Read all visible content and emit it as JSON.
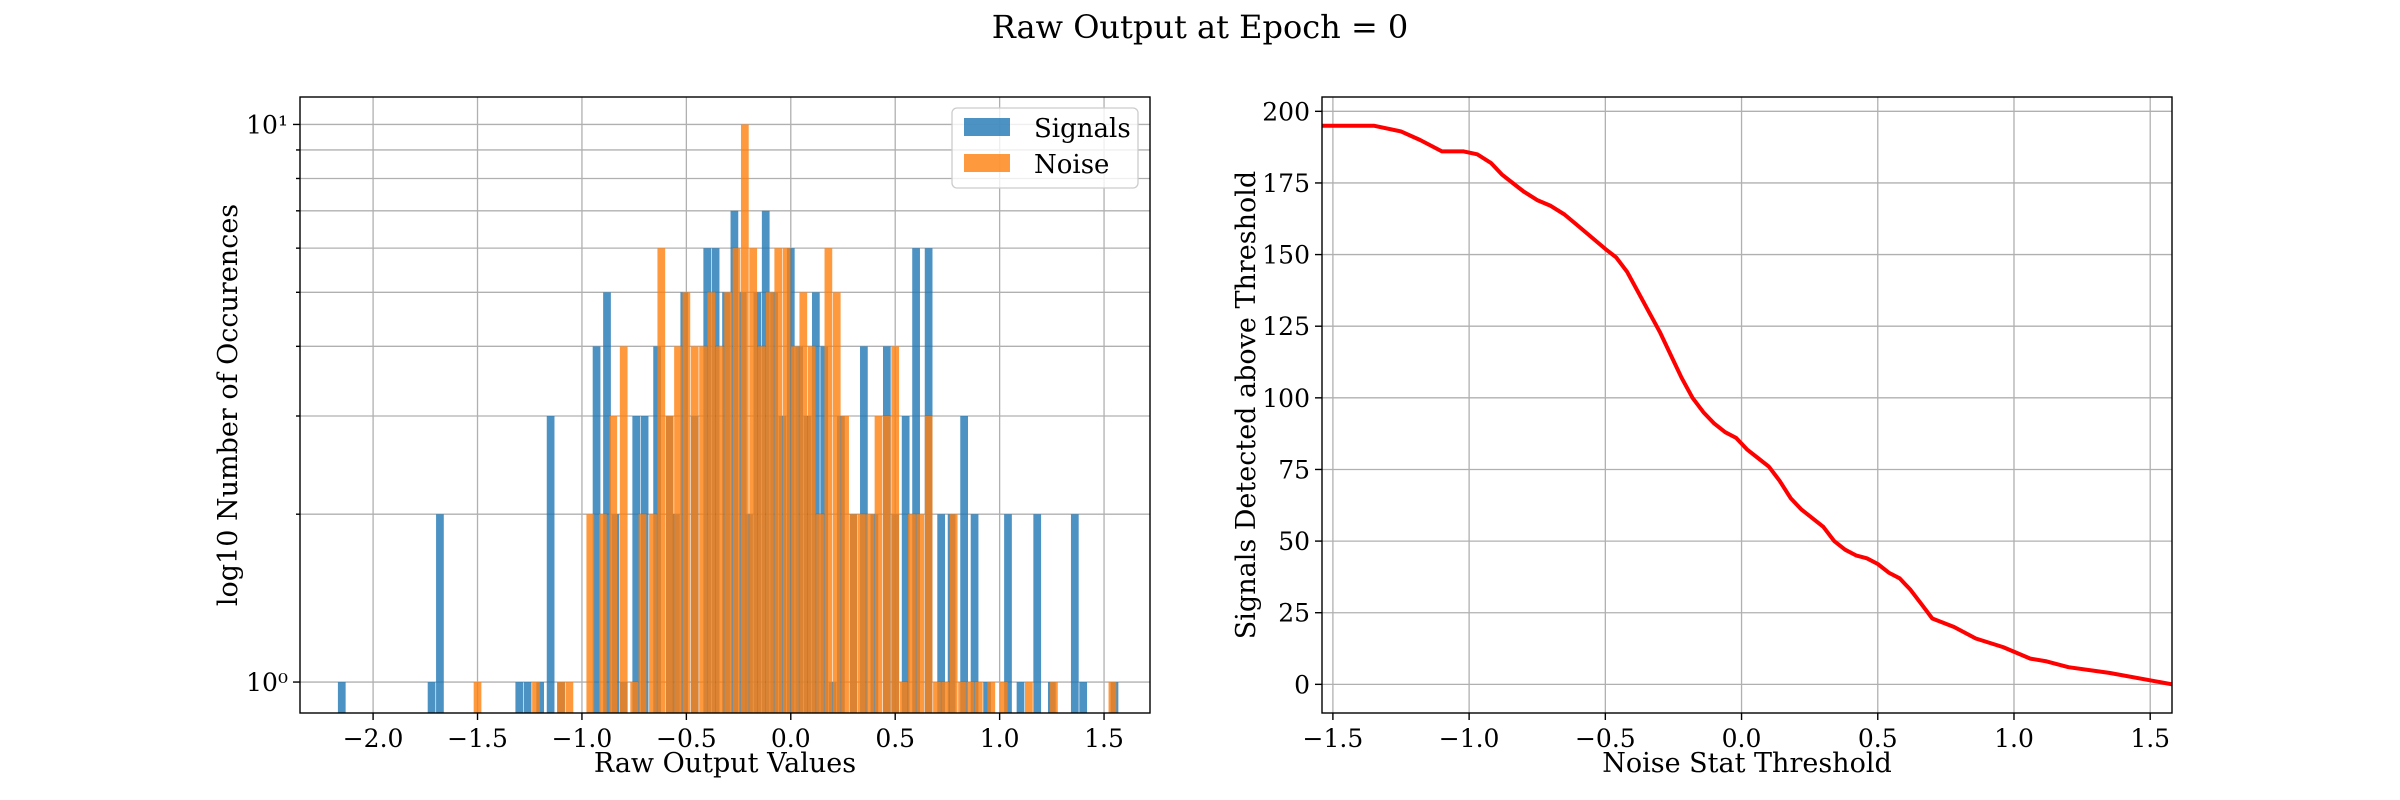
{
  "figure": {
    "suptitle": "Raw Output at Epoch = 0"
  },
  "chart_data": [
    {
      "type": "bar",
      "subtype": "histogram",
      "title": "",
      "xlabel": "Raw Output Values",
      "ylabel": "log10 Number of Occurences",
      "yscale": "log",
      "xlim": [
        -2.35,
        1.72
      ],
      "ylim": [
        0.88,
        11.2
      ],
      "xticks": [
        -2.0,
        -1.5,
        -1.0,
        -0.5,
        0.0,
        0.5,
        1.0,
        1.5
      ],
      "xtick_labels": [
        "−2.0",
        "−1.5",
        "−1.0",
        "−0.5",
        "0.0",
        "0.5",
        "1.0",
        "1.5"
      ],
      "yticks": [
        1,
        10
      ],
      "ytick_labels": [
        "10⁰",
        "10¹"
      ],
      "grid": true,
      "legend_position": "top-right",
      "bin_width": 0.037,
      "series": [
        {
          "name": "Signals",
          "color": "#1f77b4",
          "bins": [
            [
              -2.15,
              1
            ],
            [
              -1.72,
              1
            ],
            [
              -1.68,
              2
            ],
            [
              -1.3,
              1
            ],
            [
              -1.26,
              1
            ],
            [
              -1.2,
              1
            ],
            [
              -1.15,
              3
            ],
            [
              -1.1,
              1
            ],
            [
              -0.93,
              4
            ],
            [
              -0.88,
              5
            ],
            [
              -0.84,
              2
            ],
            [
              -0.8,
              1
            ],
            [
              -0.74,
              3
            ],
            [
              -0.7,
              3
            ],
            [
              -0.64,
              4
            ],
            [
              -0.58,
              3
            ],
            [
              -0.55,
              2
            ],
            [
              -0.51,
              5
            ],
            [
              -0.46,
              3
            ],
            [
              -0.4,
              6
            ],
            [
              -0.36,
              6
            ],
            [
              -0.31,
              5
            ],
            [
              -0.27,
              7
            ],
            [
              -0.23,
              5
            ],
            [
              -0.2,
              2
            ],
            [
              -0.16,
              5
            ],
            [
              -0.12,
              7
            ],
            [
              -0.08,
              5
            ],
            [
              -0.04,
              3
            ],
            [
              0.0,
              6
            ],
            [
              0.04,
              4
            ],
            [
              0.08,
              3
            ],
            [
              0.12,
              5
            ],
            [
              0.16,
              4
            ],
            [
              0.2,
              1
            ],
            [
              0.24,
              3
            ],
            [
              0.3,
              2
            ],
            [
              0.35,
              4
            ],
            [
              0.4,
              2
            ],
            [
              0.46,
              4
            ],
            [
              0.5,
              2
            ],
            [
              0.55,
              3
            ],
            [
              0.6,
              6
            ],
            [
              0.66,
              6
            ],
            [
              0.72,
              2
            ],
            [
              0.77,
              2
            ],
            [
              0.83,
              3
            ],
            [
              0.88,
              2
            ],
            [
              0.94,
              1
            ],
            [
              1.04,
              2
            ],
            [
              1.1,
              1
            ],
            [
              1.18,
              2
            ],
            [
              1.25,
              1
            ],
            [
              1.36,
              2
            ],
            [
              1.4,
              1
            ],
            [
              1.55,
              1
            ]
          ]
        },
        {
          "name": "Noise",
          "color": "#ff7f0e",
          "bins": [
            [
              -1.5,
              1
            ],
            [
              -1.22,
              1
            ],
            [
              -1.1,
              1
            ],
            [
              -1.06,
              1
            ],
            [
              -0.96,
              2
            ],
            [
              -0.9,
              2
            ],
            [
              -0.85,
              3
            ],
            [
              -0.8,
              4
            ],
            [
              -0.75,
              1
            ],
            [
              -0.71,
              2
            ],
            [
              -0.66,
              2
            ],
            [
              -0.62,
              6
            ],
            [
              -0.58,
              3
            ],
            [
              -0.54,
              4
            ],
            [
              -0.5,
              5
            ],
            [
              -0.46,
              4
            ],
            [
              -0.42,
              4
            ],
            [
              -0.38,
              5
            ],
            [
              -0.34,
              4
            ],
            [
              -0.3,
              5
            ],
            [
              -0.26,
              6
            ],
            [
              -0.22,
              10
            ],
            [
              -0.18,
              6
            ],
            [
              -0.14,
              4
            ],
            [
              -0.1,
              5
            ],
            [
              -0.06,
              6
            ],
            [
              -0.02,
              6
            ],
            [
              0.02,
              4
            ],
            [
              0.06,
              5
            ],
            [
              0.1,
              4
            ],
            [
              0.14,
              2
            ],
            [
              0.18,
              6
            ],
            [
              0.22,
              5
            ],
            [
              0.26,
              3
            ],
            [
              0.3,
              2
            ],
            [
              0.34,
              2
            ],
            [
              0.38,
              2
            ],
            [
              0.42,
              3
            ],
            [
              0.46,
              3
            ],
            [
              0.5,
              4
            ],
            [
              0.54,
              1
            ],
            [
              0.58,
              2
            ],
            [
              0.62,
              2
            ],
            [
              0.66,
              3
            ],
            [
              0.7,
              1
            ],
            [
              0.74,
              1
            ],
            [
              0.78,
              2
            ],
            [
              0.82,
              1
            ],
            [
              0.86,
              1
            ],
            [
              0.9,
              1
            ],
            [
              0.96,
              1
            ],
            [
              1.02,
              1
            ],
            [
              1.14,
              1
            ],
            [
              1.26,
              1
            ],
            [
              1.54,
              1
            ]
          ]
        }
      ]
    },
    {
      "type": "line",
      "title": "",
      "xlabel": "Noise Stat Threshold",
      "ylabel": "Signals Detected above Threshold",
      "xlim": [
        -1.54,
        1.58
      ],
      "ylim": [
        -10,
        205
      ],
      "xticks": [
        -1.5,
        -1.0,
        -0.5,
        0.0,
        0.5,
        1.0,
        1.5
      ],
      "xtick_labels": [
        "−1.5",
        "−1.0",
        "−0.5",
        "0.0",
        "0.5",
        "1.0",
        "1.5"
      ],
      "yticks": [
        0,
        25,
        50,
        75,
        100,
        125,
        150,
        175,
        200
      ],
      "ytick_labels": [
        "0",
        "25",
        "50",
        "75",
        "100",
        "125",
        "150",
        "175",
        "200"
      ],
      "grid": true,
      "series": [
        {
          "color": "#ff0000",
          "x": [
            -1.54,
            -1.35,
            -1.25,
            -1.18,
            -1.1,
            -1.02,
            -0.97,
            -0.92,
            -0.88,
            -0.84,
            -0.8,
            -0.75,
            -0.7,
            -0.65,
            -0.6,
            -0.55,
            -0.5,
            -0.46,
            -0.42,
            -0.38,
            -0.34,
            -0.3,
            -0.26,
            -0.22,
            -0.18,
            -0.14,
            -0.1,
            -0.06,
            -0.02,
            0.02,
            0.06,
            0.1,
            0.14,
            0.18,
            0.22,
            0.26,
            0.3,
            0.34,
            0.38,
            0.42,
            0.46,
            0.5,
            0.54,
            0.58,
            0.62,
            0.66,
            0.7,
            0.78,
            0.86,
            0.96,
            1.06,
            1.12,
            1.2,
            1.35,
            1.58
          ],
          "y": [
            195,
            195,
            193,
            190,
            186,
            186,
            185,
            182,
            178,
            175,
            172,
            169,
            167,
            164,
            160,
            156,
            152,
            149,
            144,
            137,
            130,
            123,
            115,
            107,
            100,
            95,
            91,
            88,
            86,
            82,
            79,
            76,
            71,
            65,
            61,
            58,
            55,
            50,
            47,
            45,
            44,
            42,
            39,
            37,
            33,
            28,
            23,
            20,
            16,
            13,
            9,
            8,
            6,
            4,
            0
          ]
        }
      ]
    }
  ],
  "legend": {
    "items": [
      {
        "label": "Signals",
        "color": "#1f77b4"
      },
      {
        "label": "Noise",
        "color": "#ff7f0e"
      }
    ]
  }
}
